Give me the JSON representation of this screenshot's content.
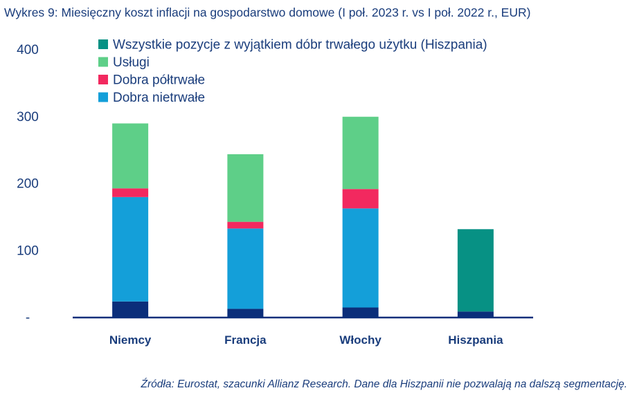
{
  "title": "Wykres 9: Miesięczny koszt inflacji na gospodarstwo domowe (I poł. 2023 r. vs I poł. 2022 r., EUR)",
  "source": "Źródła: Eurostat, szacunki Allianz Research. Dane dla Hiszpanii nie pozwalają na dalszą segmentację.",
  "chart_data": {
    "type": "bar",
    "stacked": true,
    "categories": [
      "Niemcy",
      "Francja",
      "Włochy",
      "Hiszpania"
    ],
    "ylim": [
      0,
      400
    ],
    "yticks": [
      {
        "value": 0,
        "label": "-"
      },
      {
        "value": 100,
        "label": "100"
      },
      {
        "value": 200,
        "label": "200"
      },
      {
        "value": 300,
        "label": "300"
      },
      {
        "value": 400,
        "label": "400"
      }
    ],
    "legend_position": "top",
    "series": [
      {
        "legend": false,
        "color": "#0b2e7a",
        "values": [
          24,
          13,
          15,
          9
        ]
      },
      {
        "name": "Dobra nietrwałe",
        "legend": true,
        "color": "#149fd9",
        "values": [
          156,
          120,
          148,
          0
        ]
      },
      {
        "name": "Dobra półtrwałe",
        "legend": true,
        "color": "#f2295f",
        "values": [
          13,
          10,
          29,
          0
        ]
      },
      {
        "name": "Usługi",
        "legend": true,
        "color": "#5ecf88",
        "values": [
          97,
          101,
          108,
          0
        ]
      },
      {
        "name": "Wszystkie pozycje z wyjątkiem dóbr trwałego użytku (Hiszpania)",
        "legend": true,
        "color": "#079184",
        "values": [
          0,
          0,
          0,
          123
        ]
      }
    ]
  }
}
